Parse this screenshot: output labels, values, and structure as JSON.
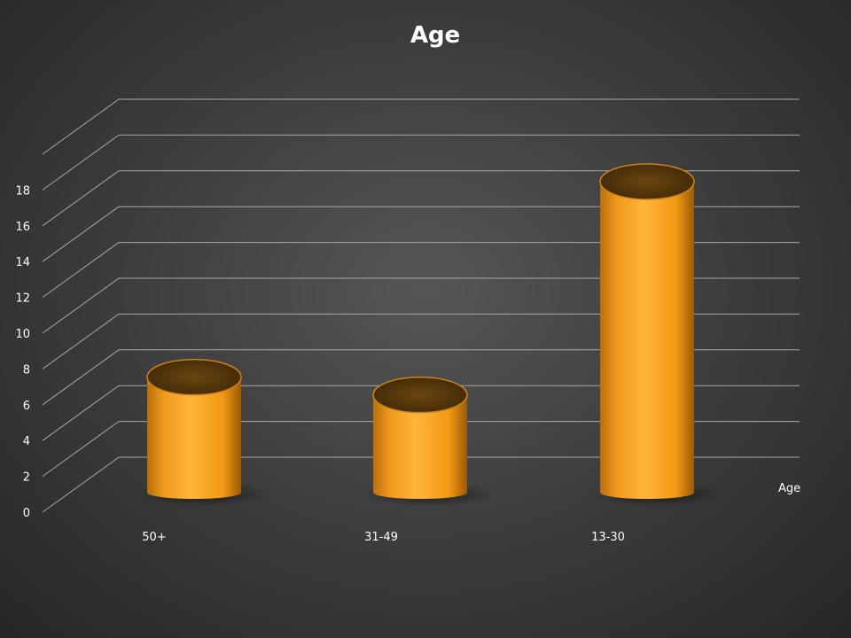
{
  "chart_data": {
    "type": "bar",
    "title": "Age",
    "categories": [
      "50+",
      "31-49",
      "13-30"
    ],
    "series": [
      {
        "name": "Age",
        "values": [
          6.5,
          5.5,
          17.5
        ]
      }
    ],
    "ylim": [
      0,
      18
    ],
    "yticks": [
      0,
      2,
      4,
      6,
      8,
      10,
      12,
      14,
      16,
      18
    ],
    "grid": true,
    "legend": "right",
    "style": "3d-cylinder"
  },
  "colors": {
    "bar": "#f6a21a",
    "bar_top": "#5a3a0c",
    "grid": "#a8a8a8"
  }
}
